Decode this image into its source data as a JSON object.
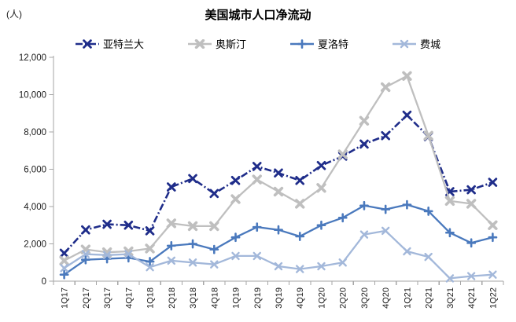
{
  "header": {
    "title": "美国城市人口净流动",
    "unit_label": "(人)"
  },
  "chart_data": {
    "type": "line",
    "title": "美国城市人口净流动",
    "unit": "(人)",
    "legend_position": "top",
    "grid": false,
    "ylim": [
      0,
      12000
    ],
    "y_tick_values": [
      0,
      2000,
      4000,
      6000,
      8000,
      10000,
      12000
    ],
    "y_tick_labels": [
      "0",
      "2,000",
      "4,000",
      "6,000",
      "8,000",
      "10,000",
      "12,000"
    ],
    "categories": [
      "1Q17",
      "2Q17",
      "3Q17",
      "4Q17",
      "1Q18",
      "2Q18",
      "3Q18",
      "4Q18",
      "1Q19",
      "2Q19",
      "3Q19",
      "4Q19",
      "1Q20",
      "2Q20",
      "3Q20",
      "4Q20",
      "1Q21",
      "2Q21",
      "3Q21",
      "4Q21",
      "1Q22"
    ],
    "series": [
      {
        "key": "atlanta",
        "name": "亚特兰大",
        "color": "#1f2d8a",
        "marker": "x-bold",
        "line_style": "dash-dot",
        "values": [
          1500,
          2750,
          3050,
          3000,
          2700,
          5050,
          5500,
          4700,
          5400,
          6150,
          5800,
          5400,
          6200,
          6700,
          7350,
          7800,
          8900,
          7750,
          4800,
          4900,
          5300
        ]
      },
      {
        "key": "austin",
        "name": "奥斯汀",
        "color": "#bfbfbf",
        "marker": "x-fat",
        "line_style": "solid",
        "values": [
          1100,
          1700,
          1550,
          1600,
          1750,
          3100,
          2950,
          2950,
          4400,
          5450,
          4800,
          4150,
          5000,
          6800,
          8600,
          10400,
          11000,
          7800,
          4300,
          4150,
          3000
        ]
      },
      {
        "key": "charlotte",
        "name": "夏洛特",
        "color": "#4a79bd",
        "marker": "plus",
        "line_style": "solid",
        "values": [
          350,
          1150,
          1200,
          1250,
          1050,
          1900,
          2000,
          1700,
          2350,
          2900,
          2750,
          2400,
          3000,
          3400,
          4050,
          3850,
          4100,
          3750,
          2600,
          2050,
          2350
        ]
      },
      {
        "key": "philadelphia",
        "name": "费城",
        "color": "#a3b8da",
        "marker": "x",
        "line_style": "solid",
        "values": [
          700,
          1450,
          1400,
          1450,
          750,
          1100,
          1000,
          900,
          1350,
          1350,
          800,
          650,
          800,
          1000,
          2500,
          2700,
          1600,
          1300,
          150,
          270,
          350
        ]
      }
    ],
    "axis_color": "#a6a6a6",
    "tick_label_color": "#1a1a1a"
  }
}
